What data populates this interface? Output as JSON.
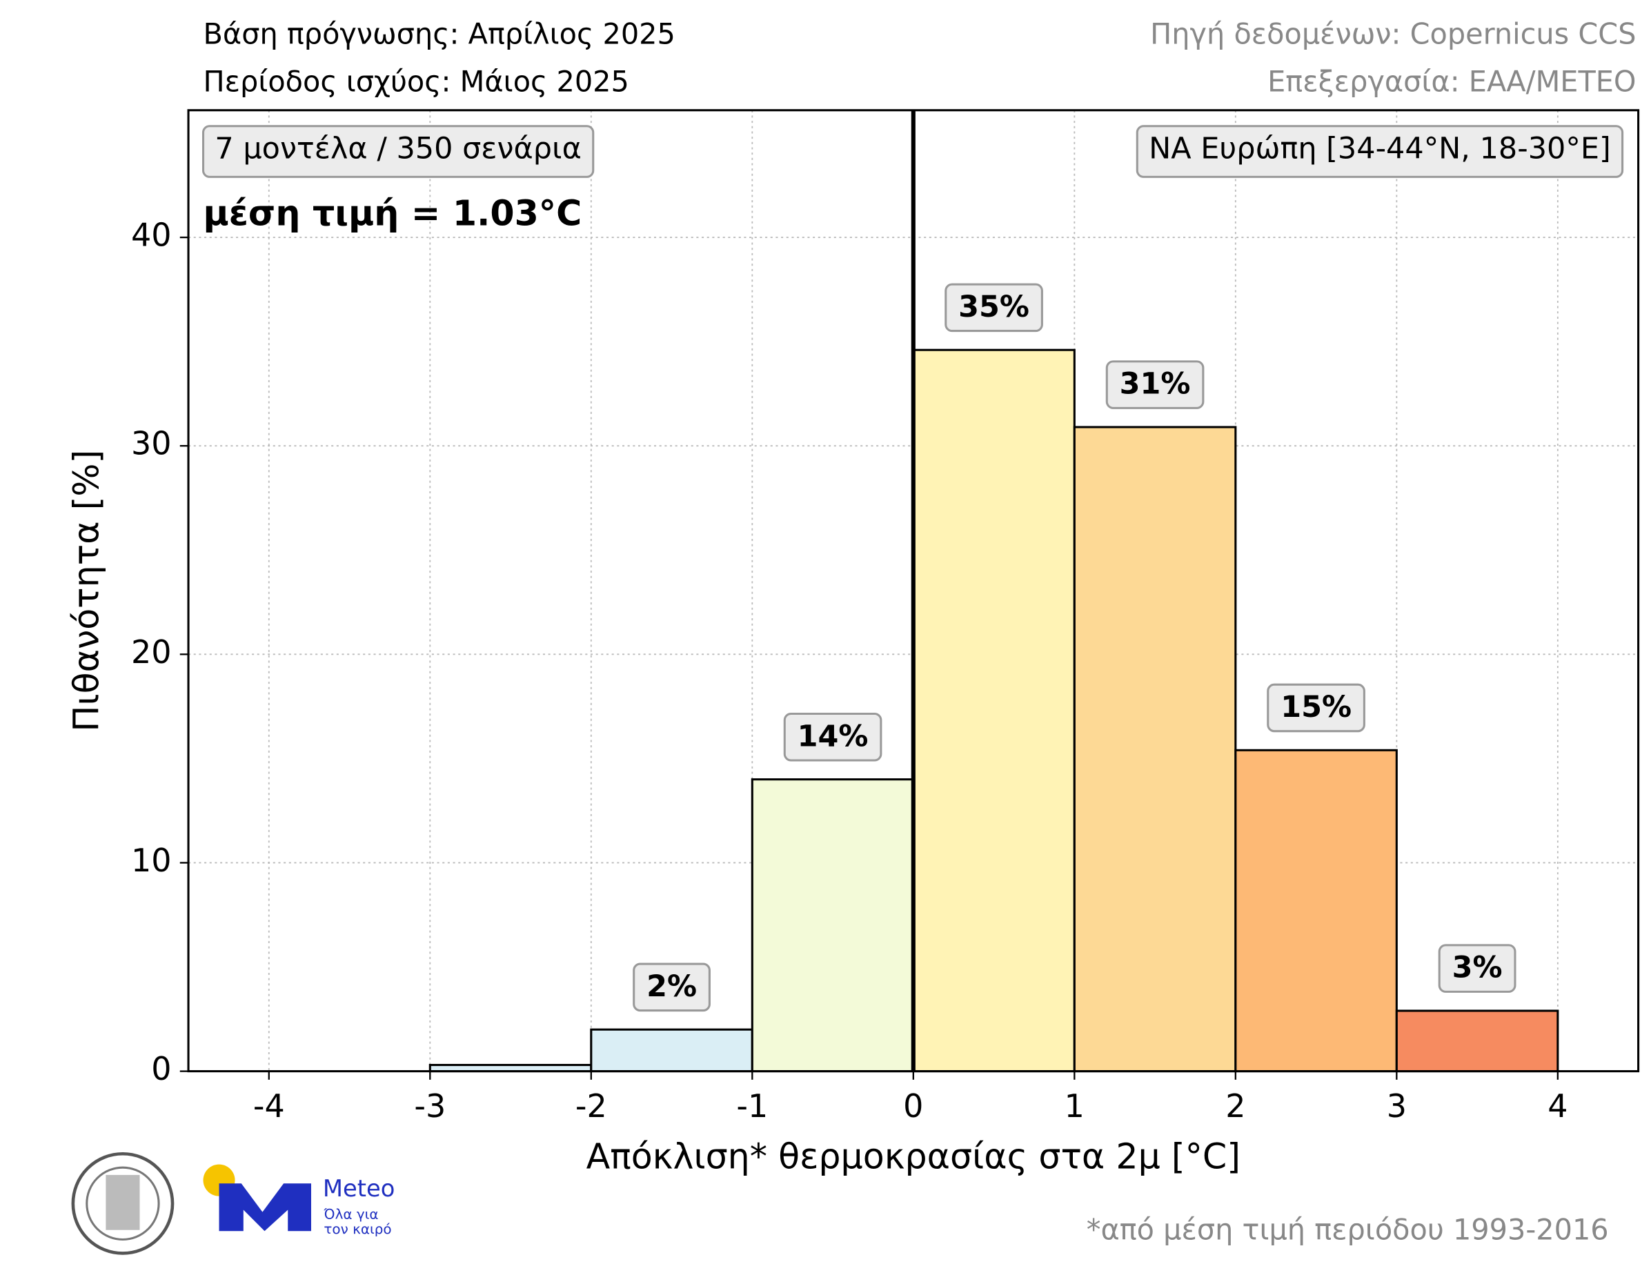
{
  "chart_data": {
    "type": "histogram",
    "header_left": [
      "Βάση πρόγνωσης: Απρίλιος 2025",
      "Περίοδος ισχύος: Μάιος 2025"
    ],
    "header_right": [
      "Πηγή δεδομένων: Copernicus CCS",
      "Επεξεργασία: ΕΑΑ/METEO"
    ],
    "box_left": "7 μοντέλα / 350 σενάρια",
    "box_right": "ΝΑ Ευρώπη [34-44°N, 18-30°E]",
    "mean_text": "μέση τιμή = 1.03°C",
    "xlabel": "Απόκλιση* θερμοκρασίας στα 2μ [°C]",
    "ylabel": "Πιθανότητα [%]",
    "footnote": "*από μέση τιμή περιόδου 1993-2016",
    "bins": [
      -4,
      -3,
      -2,
      -1,
      0,
      1,
      2,
      3,
      4
    ],
    "values": [
      0,
      0.3,
      2,
      14,
      34.6,
      30.9,
      15.4,
      2.9
    ],
    "value_labels": [
      null,
      null,
      "2%",
      "14%",
      "35%",
      "31%",
      "15%",
      "3%"
    ],
    "colors": [
      "#dbeef6",
      "#dbeef6",
      "#daeef5",
      "#f3fad8",
      "#fff3b5",
      "#fdd995",
      "#fdb975",
      "#f68b60"
    ],
    "xlim": [
      -4.5,
      4.5
    ],
    "ylim": [
      0,
      46.1
    ],
    "xticks": [
      -4,
      -3,
      -2,
      -1,
      0,
      1,
      2,
      3,
      4
    ],
    "yticks": [
      0,
      10,
      20,
      30,
      40
    ],
    "grid": true,
    "reference_line_x": 0,
    "logos": {
      "name": "Meteo",
      "tagline": [
        "Όλα για",
        "τον καιρό"
      ]
    }
  }
}
